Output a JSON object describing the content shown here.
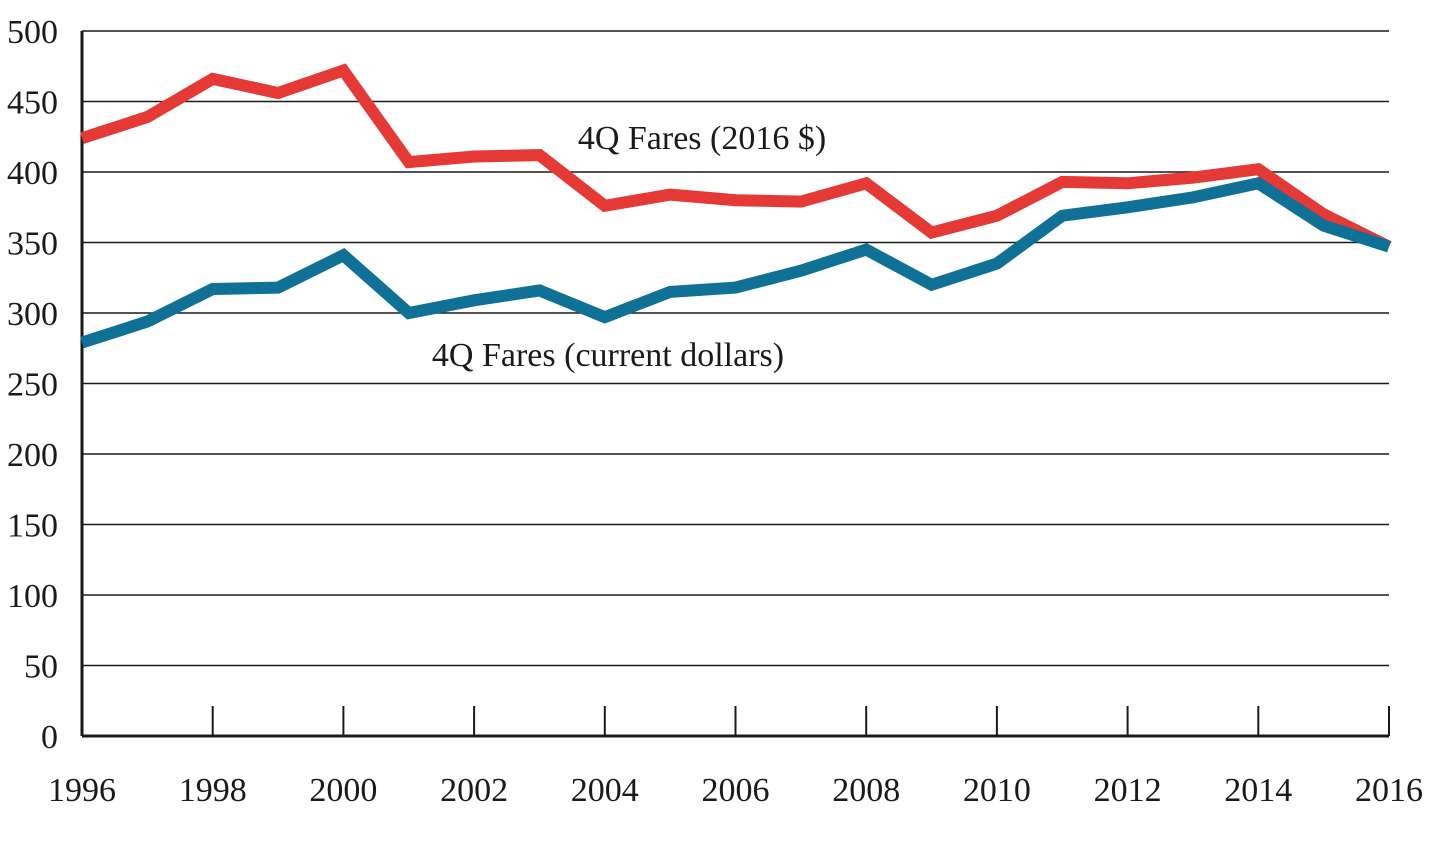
{
  "chart_data": {
    "type": "line",
    "title": "",
    "xlabel": "",
    "ylabel": "",
    "xlim": [
      1996,
      2016
    ],
    "ylim": [
      0,
      500
    ],
    "grid": true,
    "x": [
      1996,
      1997,
      1998,
      1999,
      2000,
      2001,
      2002,
      2003,
      2004,
      2005,
      2006,
      2007,
      2008,
      2009,
      2010,
      2011,
      2012,
      2013,
      2014,
      2015,
      2016
    ],
    "x_tick_labels": [
      "1996",
      "1998",
      "2000",
      "2002",
      "2004",
      "2006",
      "2008",
      "2010",
      "2012",
      "2014",
      "2016"
    ],
    "y_tick_labels": [
      "0",
      "50",
      "100",
      "150",
      "200",
      "250",
      "300",
      "350",
      "400",
      "450",
      "500"
    ],
    "series": [
      {
        "name": "4Q Fares (2016 $)",
        "color": "#e53935",
        "values": [
          424,
          439,
          466,
          456,
          472,
          407,
          411,
          412,
          376,
          384,
          380,
          379,
          392,
          357,
          369,
          393,
          392,
          396,
          402,
          370,
          347
        ]
      },
      {
        "name": "4Q Fares (current dollars)",
        "color": "#0f7196",
        "values": [
          279,
          294,
          317,
          318,
          341,
          300,
          309,
          316,
          297,
          315,
          318,
          330,
          345,
          320,
          335,
          369,
          375,
          382,
          392,
          362,
          347
        ]
      }
    ]
  }
}
